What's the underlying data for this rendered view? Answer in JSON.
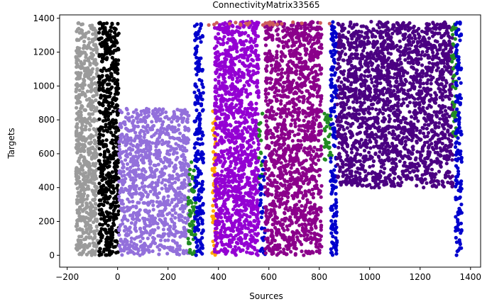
{
  "chart_data": {
    "type": "scatter",
    "title": "ConnectivityMatrix33565",
    "xlabel": "Sources",
    "ylabel": "Targets",
    "xlim": [
      -230,
      1440
    ],
    "ylim": [
      -70,
      1420
    ],
    "xticks": [
      -200,
      0,
      200,
      400,
      600,
      800,
      1000,
      1200,
      1400
    ],
    "yticks": [
      0,
      200,
      400,
      600,
      800,
      1000,
      1200,
      1400
    ],
    "xtick_labels": [
      "−200",
      "0",
      "200",
      "400",
      "600",
      "800",
      "1000",
      "1200",
      "1400"
    ],
    "ytick_labels": [
      "0",
      "200",
      "400",
      "600",
      "800",
      "1000",
      "1200",
      "1400"
    ],
    "grid": false,
    "legend": "none",
    "blocks": [
      {
        "color": "#9b9b9b",
        "x": [
          -165,
          -80
        ],
        "y": [
          0,
          1375
        ],
        "density": 0.95
      },
      {
        "color": "#000000",
        "x": [
          -75,
          5
        ],
        "y": [
          0,
          1375
        ],
        "density": 0.9
      },
      {
        "color": "#9370db",
        "x": [
          5,
          285
        ],
        "y": [
          0,
          870
        ],
        "density": 0.7
      },
      {
        "color": "#228b22",
        "x": [
          280,
          310
        ],
        "y": [
          0,
          560
        ],
        "density": 0.6
      },
      {
        "color": "#0000cd",
        "x": [
          305,
          340
        ],
        "y": [
          0,
          1370
        ],
        "density": 0.75
      },
      {
        "color": "#ffa500",
        "x": [
          375,
          395
        ],
        "y": [
          0,
          860
        ],
        "density": 0.6
      },
      {
        "color": "#9400d3",
        "x": [
          385,
          560
        ],
        "y": [
          0,
          1380
        ],
        "density": 0.85
      },
      {
        "color": "#228b22",
        "x": [
          560,
          575
        ],
        "y": [
          380,
          840
        ],
        "density": 0.5
      },
      {
        "color": "#0000cd",
        "x": [
          565,
          585
        ],
        "y": [
          0,
          600
        ],
        "density": 0.5
      },
      {
        "color": "#8b008b",
        "x": [
          585,
          810
        ],
        "y": [
          0,
          1380
        ],
        "density": 0.75
      },
      {
        "color": "#228b22",
        "x": [
          820,
          850
        ],
        "y": [
          560,
          860
        ],
        "density": 0.6
      },
      {
        "color": "#0000cd",
        "x": [
          845,
          870
        ],
        "y": [
          0,
          1380
        ],
        "density": 0.8
      },
      {
        "color": "#4b0082",
        "x": [
          870,
          1330
        ],
        "y": [
          400,
          1380
        ],
        "density": 0.75
      },
      {
        "color": "#228b22",
        "x": [
          1325,
          1345
        ],
        "y": [
          700,
          1380
        ],
        "density": 0.6
      },
      {
        "color": "#0000cd",
        "x": [
          1340,
          1365
        ],
        "y": [
          0,
          1380
        ],
        "density": 0.7
      },
      {
        "color": "#cd5c5c",
        "x": [
          350,
          850
        ],
        "y": [
          1360,
          1380
        ],
        "density": 0.4
      }
    ]
  }
}
